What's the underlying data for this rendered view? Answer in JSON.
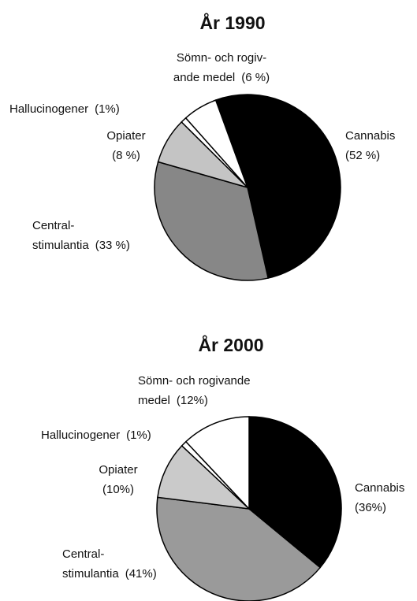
{
  "chart_data": [
    {
      "type": "pie",
      "title": "År 1990",
      "categories": [
        [
          "Cannabis"
        ],
        [
          "Central-",
          "stimulantia"
        ],
        [
          "Opiater"
        ],
        [
          "Hallucinogener"
        ],
        [
          "Sömn- och rogiv-",
          "ande medel"
        ]
      ],
      "values": [
        52,
        33,
        8,
        1,
        6
      ],
      "value_labels": [
        "(52 %)",
        "(33 %)",
        "(8 %)",
        "(1%)",
        "(6 %)"
      ],
      "colors": [
        "#000000",
        "#878787",
        "#c4c4c4",
        "#ffffff",
        "#ffffff"
      ]
    },
    {
      "type": "pie",
      "title": "År 2000",
      "categories": [
        [
          "Cannabis"
        ],
        [
          "Central-",
          "stimulantia"
        ],
        [
          "Opiater"
        ],
        [
          "Hallucinogener"
        ],
        [
          "Sömn- och rogivande",
          "medel"
        ]
      ],
      "values": [
        36,
        41,
        10,
        1,
        12
      ],
      "value_labels": [
        "(36%)",
        "(41%)",
        "(10%)",
        "(1%)",
        "(12%)"
      ],
      "colors": [
        "#000000",
        "#9a9a9a",
        "#cacaca",
        "#ffffff",
        "#ffffff"
      ]
    }
  ]
}
